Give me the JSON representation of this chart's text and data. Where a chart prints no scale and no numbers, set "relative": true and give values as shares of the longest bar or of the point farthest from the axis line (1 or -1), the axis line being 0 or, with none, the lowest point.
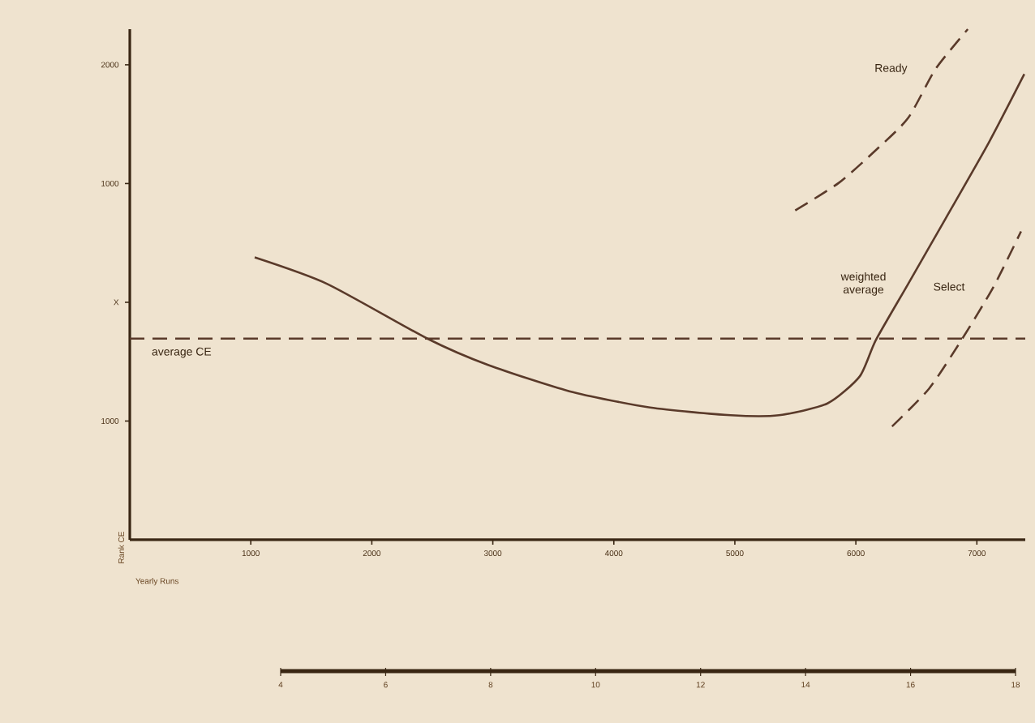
{
  "chart_data": {
    "type": "line",
    "relative": true,
    "ylabel": "Rank CE",
    "xlabel": "Yearly Runs",
    "xlim": [
      0,
      7400
    ],
    "xticks": [
      1000,
      2000,
      3000,
      4000,
      5000,
      6000,
      7000
    ],
    "annotations": [
      "2000",
      "1000",
      "X",
      "1000",
      "4",
      "6",
      "8",
      "10",
      "12",
      "14",
      "16",
      "18"
    ],
    "series": [
      {
        "name": "weighted average",
        "color": "#5a3a2a",
        "line_style": "solid",
        "x": [
          1032,
          1632,
          2459,
          2965,
          3632,
          4299,
          4965,
          5365,
          5765,
          6032,
          6165,
          6432,
          6739,
          7099,
          7392
        ],
        "values": [
          0.553,
          0.501,
          0.394,
          0.342,
          0.291,
          0.259,
          0.244,
          0.244,
          0.267,
          0.32,
          0.391,
          0.501,
          0.628,
          0.778,
          0.912
        ]
      },
      {
        "name": "Ready",
        "color": "#5a3a2a",
        "line_style": "dashed",
        "x": [
          5499,
          5859,
          6165,
          6432,
          6659,
          6925
        ],
        "values": [
          0.645,
          0.699,
          0.763,
          0.826,
          0.922,
          1
        ]
      },
      {
        "name": "Select",
        "color": "#5a3a2a",
        "line_style": "dashed",
        "x": [
          6299,
          6605,
          6872,
          7139,
          7365
        ],
        "values": [
          0.222,
          0.296,
          0.391,
          0.496,
          0.604
        ]
      }
    ],
    "ref_lines": [
      {
        "axis": "y",
        "value": 0.394,
        "label": "average CE",
        "color": "#5a3a2a",
        "line_style": "dashed"
      }
    ],
    "grid": false,
    "marker": "none"
  }
}
